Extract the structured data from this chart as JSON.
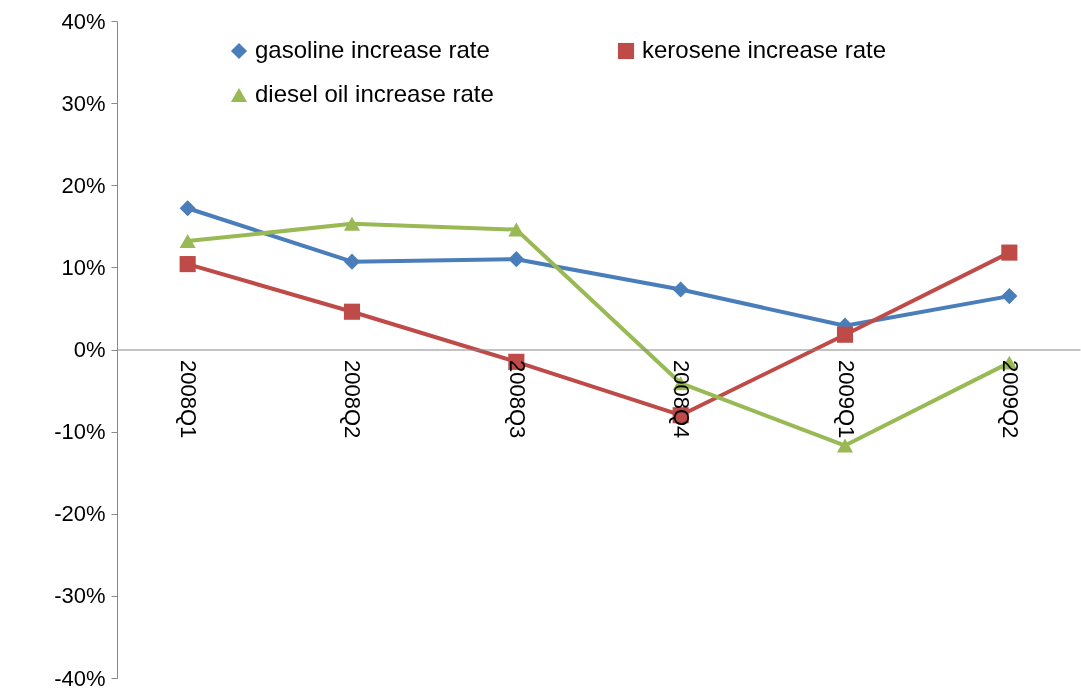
{
  "chart_data": {
    "type": "line",
    "categories": [
      "2008Q1",
      "2008Q2",
      "2008Q3",
      "2008Q4",
      "2009Q1",
      "2009Q2"
    ],
    "series": [
      {
        "name": "gasoline increase rate",
        "color": "#4a7ebb",
        "marker": "diamond",
        "values": [
          17.2,
          10.7,
          11.0,
          7.3,
          2.9,
          6.5
        ]
      },
      {
        "name": "kerosene increase rate",
        "color": "#be4b48",
        "marker": "square",
        "values": [
          10.4,
          4.6,
          -1.5,
          -8.0,
          1.8,
          11.8
        ]
      },
      {
        "name": "diesel oil increase rate",
        "color": "#98b954",
        "marker": "triangle",
        "values": [
          13.2,
          15.3,
          14.6,
          -4.1,
          -11.7,
          -1.6
        ]
      }
    ],
    "ylim": [
      -40,
      40
    ],
    "yticks": [
      {
        "value": -40,
        "label": "-40%"
      },
      {
        "value": -30,
        "label": "-30%"
      },
      {
        "value": -20,
        "label": "-20%"
      },
      {
        "value": -10,
        "label": "-10%"
      },
      {
        "value": 0,
        "label": "0%"
      },
      {
        "value": 10,
        "label": "10%"
      },
      {
        "value": 20,
        "label": "20%"
      },
      {
        "value": 30,
        "label": "30%"
      },
      {
        "value": 40,
        "label": "40%"
      }
    ],
    "grid": false,
    "legend": "top",
    "line_style": "solid"
  }
}
